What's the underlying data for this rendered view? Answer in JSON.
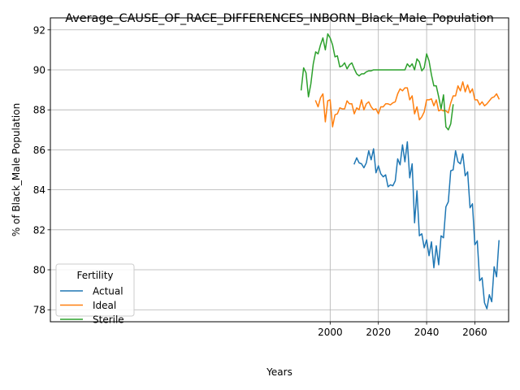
{
  "chart_data": {
    "type": "line",
    "title": "Average_CAUSE_OF_RACE_DIFFERENCES_INBORN_Black_Male_Population",
    "xlabel": "Years",
    "ylabel": "% of Black_Male Population",
    "xlim": [
      1884,
      2074
    ],
    "ylim": [
      77.4,
      92.6
    ],
    "xticks": [
      2000,
      2020,
      2040,
      2060
    ],
    "yticks": [
      78,
      80,
      82,
      84,
      86,
      88,
      90,
      92
    ],
    "grid": true,
    "legend": {
      "title": "Fertility",
      "position": "lower-left"
    },
    "colors": {
      "Actual": "#1f77b4",
      "Ideal": "#ff7f0e",
      "Sterile": "#2ca02c"
    },
    "series": [
      {
        "name": "Actual",
        "x": [
          2010,
          2011,
          2012,
          2013,
          2014,
          2015,
          2016,
          2017,
          2018,
          2019,
          2020,
          2021,
          2022,
          2023,
          2024,
          2025,
          2026,
          2027,
          2028,
          2029,
          2030,
          2031,
          2032,
          2033,
          2034,
          2035,
          2036,
          2037,
          2038,
          2039,
          2040,
          2041,
          2042,
          2043,
          2044,
          2045,
          2046,
          2047,
          2048,
          2049,
          2050,
          2051,
          2052,
          2053,
          2054,
          2055,
          2056,
          2057,
          2058,
          2059,
          2060,
          2061,
          2062,
          2063,
          2064,
          2065,
          2066,
          2067,
          2068,
          2069,
          2070
        ],
        "values": [
          85.3,
          85.6,
          85.35,
          85.3,
          85.1,
          85.35,
          85.95,
          85.5,
          86.05,
          84.85,
          85.2,
          84.8,
          84.65,
          84.75,
          84.15,
          84.25,
          84.2,
          84.45,
          85.55,
          85.25,
          86.25,
          85.4,
          86.4,
          84.6,
          85.3,
          82.35,
          83.95,
          81.7,
          81.8,
          81.1,
          81.5,
          80.7,
          81.4,
          80.1,
          81.2,
          80.25,
          81.7,
          81.6,
          83.15,
          83.4,
          84.95,
          85.0,
          85.95,
          85.4,
          85.3,
          85.8,
          84.7,
          84.9,
          83.1,
          83.3,
          81.25,
          81.45,
          79.45,
          79.6,
          78.35,
          78.05,
          78.75,
          78.4,
          80.15,
          79.65,
          81.45
        ]
      },
      {
        "name": "Ideal",
        "x": [
          1994,
          1995,
          1996,
          1997,
          1998,
          1999,
          2000,
          2001,
          2002,
          2003,
          2004,
          2005,
          2006,
          2007,
          2008,
          2009,
          2010,
          2011,
          2012,
          2013,
          2014,
          2015,
          2016,
          2017,
          2018,
          2019,
          2020,
          2021,
          2022,
          2023,
          2024,
          2025,
          2026,
          2027,
          2028,
          2029,
          2030,
          2031,
          2032,
          2033,
          2034,
          2035,
          2036,
          2037,
          2038,
          2039,
          2040,
          2041,
          2042,
          2043,
          2044,
          2045,
          2046,
          2047,
          2048,
          2049,
          2050,
          2051,
          2052,
          2053,
          2054,
          2055,
          2056,
          2057,
          2058,
          2059,
          2060,
          2061,
          2062,
          2063,
          2064,
          2065,
          2066,
          2067,
          2068,
          2069,
          2070
        ],
        "values": [
          88.45,
          88.15,
          88.6,
          88.8,
          87.4,
          88.45,
          88.5,
          87.15,
          87.75,
          87.8,
          88.1,
          88.05,
          88.05,
          88.45,
          88.3,
          88.3,
          87.8,
          88.1,
          88.0,
          88.5,
          88.0,
          88.3,
          88.4,
          88.15,
          88.0,
          88.05,
          87.8,
          88.15,
          88.15,
          88.3,
          88.3,
          88.25,
          88.35,
          88.4,
          88.8,
          89.05,
          88.95,
          89.1,
          89.1,
          88.5,
          88.7,
          87.8,
          88.15,
          87.5,
          87.65,
          87.9,
          88.5,
          88.5,
          88.55,
          88.2,
          88.5,
          87.95,
          88.0,
          87.95,
          87.95,
          87.85,
          88.35,
          88.7,
          88.7,
          89.2,
          88.95,
          89.4,
          88.9,
          89.25,
          88.85,
          89.05,
          88.5,
          88.5,
          88.25,
          88.4,
          88.2,
          88.3,
          88.45,
          88.6,
          88.65,
          88.8,
          88.55
        ]
      },
      {
        "name": "Sterile",
        "x": [
          1988,
          1989,
          1990,
          1991,
          1992,
          1993,
          1994,
          1995,
          1996,
          1997,
          1998,
          1999,
          2000,
          2001,
          2002,
          2003,
          2004,
          2005,
          2006,
          2007,
          2008,
          2009,
          2010,
          2011,
          2012,
          2013,
          2014,
          2015,
          2016,
          2017,
          2018,
          2019,
          2020,
          2021,
          2022,
          2023,
          2024,
          2025,
          2026,
          2027,
          2028,
          2029,
          2030,
          2031,
          2032,
          2033,
          2034,
          2035,
          2036,
          2037,
          2038,
          2039,
          2040,
          2041,
          2042,
          2043,
          2044,
          2045,
          2046,
          2047,
          2048,
          2049,
          2050,
          2051
        ],
        "values": [
          89.0,
          90.1,
          89.85,
          88.65,
          89.3,
          90.3,
          90.9,
          90.8,
          91.25,
          91.6,
          91.0,
          91.8,
          91.6,
          91.25,
          90.65,
          90.7,
          90.15,
          90.2,
          90.35,
          90.05,
          90.25,
          90.35,
          90.05,
          89.8,
          89.7,
          89.8,
          89.8,
          89.9,
          89.95,
          89.95,
          90.0,
          90.0,
          90.0,
          90.0,
          90.0,
          90.0,
          90.0,
          90.0,
          90.0,
          90.0,
          90.0,
          90.0,
          90.0,
          90.0,
          90.3,
          90.15,
          90.3,
          90.0,
          90.55,
          90.4,
          89.95,
          90.1,
          90.8,
          90.45,
          89.75,
          89.2,
          89.2,
          88.65,
          88.05,
          88.75,
          87.15,
          87.0,
          87.3,
          88.25
        ]
      }
    ]
  }
}
